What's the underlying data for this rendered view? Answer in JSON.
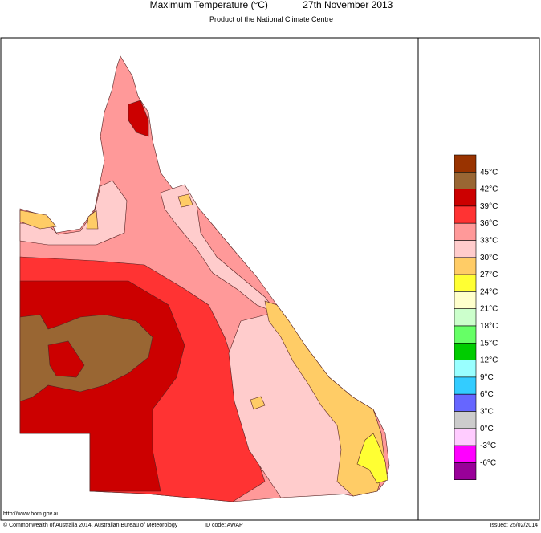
{
  "header": {
    "title": "Maximum Temperature (°C)",
    "date": "27th November 2013",
    "subtitle": "Product of the National Climate Centre"
  },
  "legend": {
    "colors": [
      "#993300",
      "#996633",
      "#cc0000",
      "#ff3333",
      "#ff9999",
      "#ffcccc",
      "#ffcc66",
      "#ffff33",
      "#ffffcc",
      "#ccffcc",
      "#66ff66",
      "#00cc00",
      "#99ffff",
      "#33ccff",
      "#6666ff",
      "#cccccc",
      "#ffccff",
      "#ff00ff",
      "#990099"
    ],
    "labels": [
      "45°C",
      "42°C",
      "39°C",
      "36°C",
      "33°C",
      "30°C",
      "27°C",
      "24°C",
      "21°C",
      "18°C",
      "15°C",
      "12°C",
      "9°C",
      "6°C",
      "3°C",
      "0°C",
      "-3°C",
      "-6°C"
    ]
  },
  "footer": {
    "url": "http://www.bom.gov.au",
    "copyright": "© Commonwealth of Australia 2014, Australian Bureau of Meteorology",
    "id_code": "ID code: AWAP",
    "issued": "Issued: 25/02/2014"
  }
}
